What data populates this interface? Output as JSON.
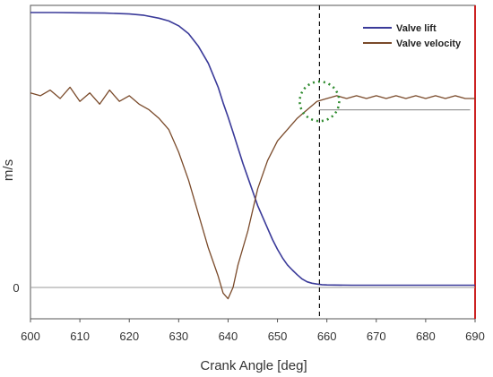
{
  "chart_data": {
    "type": "line",
    "title": "",
    "xlabel": "Crank Angle [deg]",
    "ylabel": "m/s",
    "xlim": [
      600,
      690
    ],
    "x_ticks": [
      600,
      610,
      620,
      630,
      640,
      650,
      660,
      670,
      680,
      690
    ],
    "y_tick_label": "0",
    "grid": false,
    "legend_position": "top-right",
    "marker_x": 658.5,
    "series": [
      {
        "name": "Valve lift",
        "color": "#3a3a99",
        "x": [
          600,
          605,
          610,
          615,
          620,
          623,
          626,
          628,
          630,
          632,
          634,
          636,
          638,
          639,
          640,
          641,
          642,
          643,
          644,
          645,
          646,
          647,
          648,
          649,
          650,
          651,
          652,
          653,
          654,
          655,
          656,
          657,
          658,
          659,
          660,
          665,
          670,
          675,
          680,
          685,
          690
        ],
        "values": [
          97.5,
          97.5,
          97.4,
          97.3,
          97.0,
          96.5,
          95.5,
          94.5,
          92.8,
          90.0,
          85.5,
          79.5,
          71.0,
          65.5,
          60.5,
          55.0,
          49.5,
          44.0,
          39.0,
          34.0,
          29.0,
          25.0,
          21.0,
          17.0,
          13.5,
          10.5,
          8.0,
          6.2,
          4.5,
          3.0,
          2.0,
          1.5,
          1.2,
          1.0,
          0.9,
          0.8,
          0.8,
          0.8,
          0.8,
          0.8,
          0.8
        ]
      },
      {
        "name": "Valve velocity",
        "color": "#7a4a2a",
        "x": [
          600,
          602,
          604,
          606,
          608,
          610,
          612,
          614,
          616,
          618,
          620,
          622,
          624,
          626,
          628,
          630,
          632,
          634,
          636,
          638,
          639,
          640,
          641,
          642,
          644,
          646,
          648,
          650,
          652,
          654,
          656,
          658,
          660,
          662,
          664,
          666,
          668,
          670,
          672,
          674,
          676,
          678,
          680,
          682,
          684,
          686,
          688,
          690
        ],
        "values": [
          69,
          68,
          70,
          67,
          71,
          66,
          69,
          65,
          70,
          66,
          68,
          65,
          63,
          60,
          56,
          48,
          38,
          26,
          14,
          4,
          -2,
          -4,
          0,
          8,
          20,
          35,
          45,
          52,
          56,
          60,
          63,
          66,
          67,
          68,
          67,
          68,
          67,
          68,
          67,
          68,
          67,
          68,
          67,
          68,
          67,
          68,
          67,
          67
        ]
      }
    ],
    "reference_line": {
      "y": 63,
      "x_range": [
        658.5,
        689
      ]
    }
  }
}
